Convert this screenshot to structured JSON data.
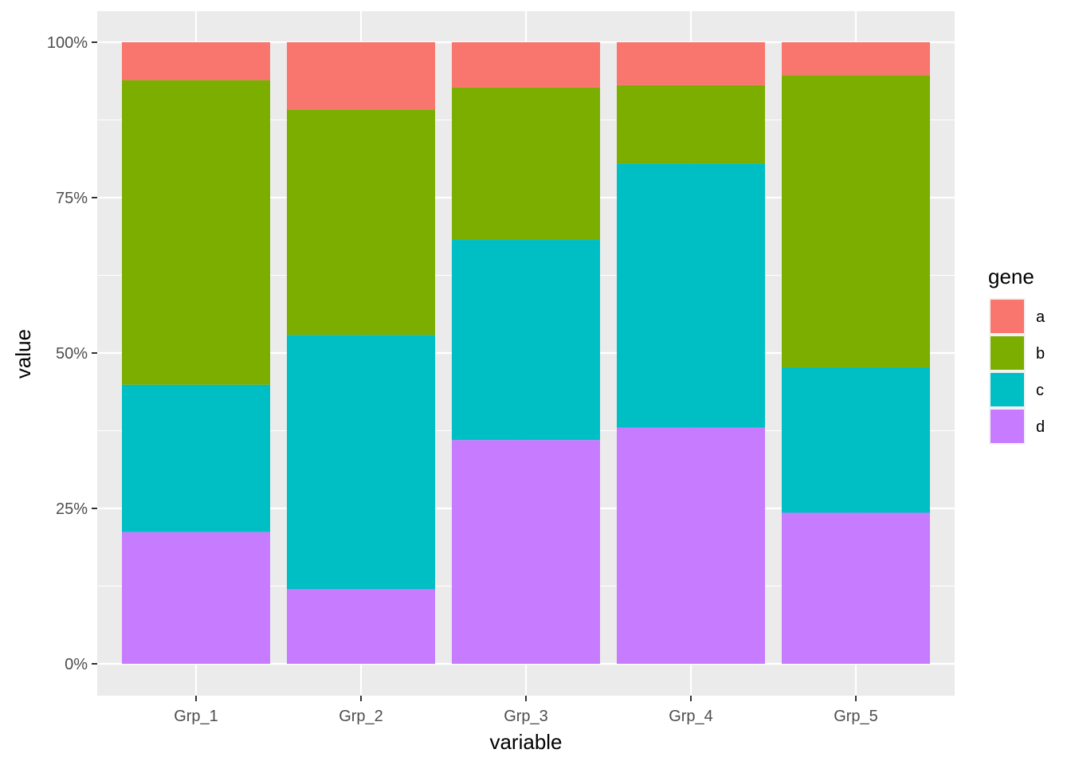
{
  "chart_data": {
    "type": "bar",
    "stacked": "percent",
    "xlabel": "variable",
    "ylabel": "value",
    "categories": [
      "Grp_1",
      "Grp_2",
      "Grp_3",
      "Grp_4",
      "Grp_5"
    ],
    "y_ticks": [
      "0%",
      "25%",
      "50%",
      "75%",
      "100%"
    ],
    "ylim": [
      0,
      1
    ],
    "grid": true,
    "legend": {
      "title": "gene",
      "placement": "right"
    },
    "series": [
      {
        "name": "a",
        "color": "#F8766D",
        "values": [
          0.061,
          0.108,
          0.073,
          0.069,
          0.053
        ]
      },
      {
        "name": "b",
        "color": "#7CAE00",
        "values": [
          0.49,
          0.363,
          0.245,
          0.126,
          0.47
        ]
      },
      {
        "name": "c",
        "color": "#00BFC4",
        "values": [
          0.237,
          0.409,
          0.322,
          0.425,
          0.234
        ]
      },
      {
        "name": "d",
        "color": "#C77CFF",
        "values": [
          0.212,
          0.12,
          0.36,
          0.38,
          0.243
        ]
      }
    ]
  }
}
